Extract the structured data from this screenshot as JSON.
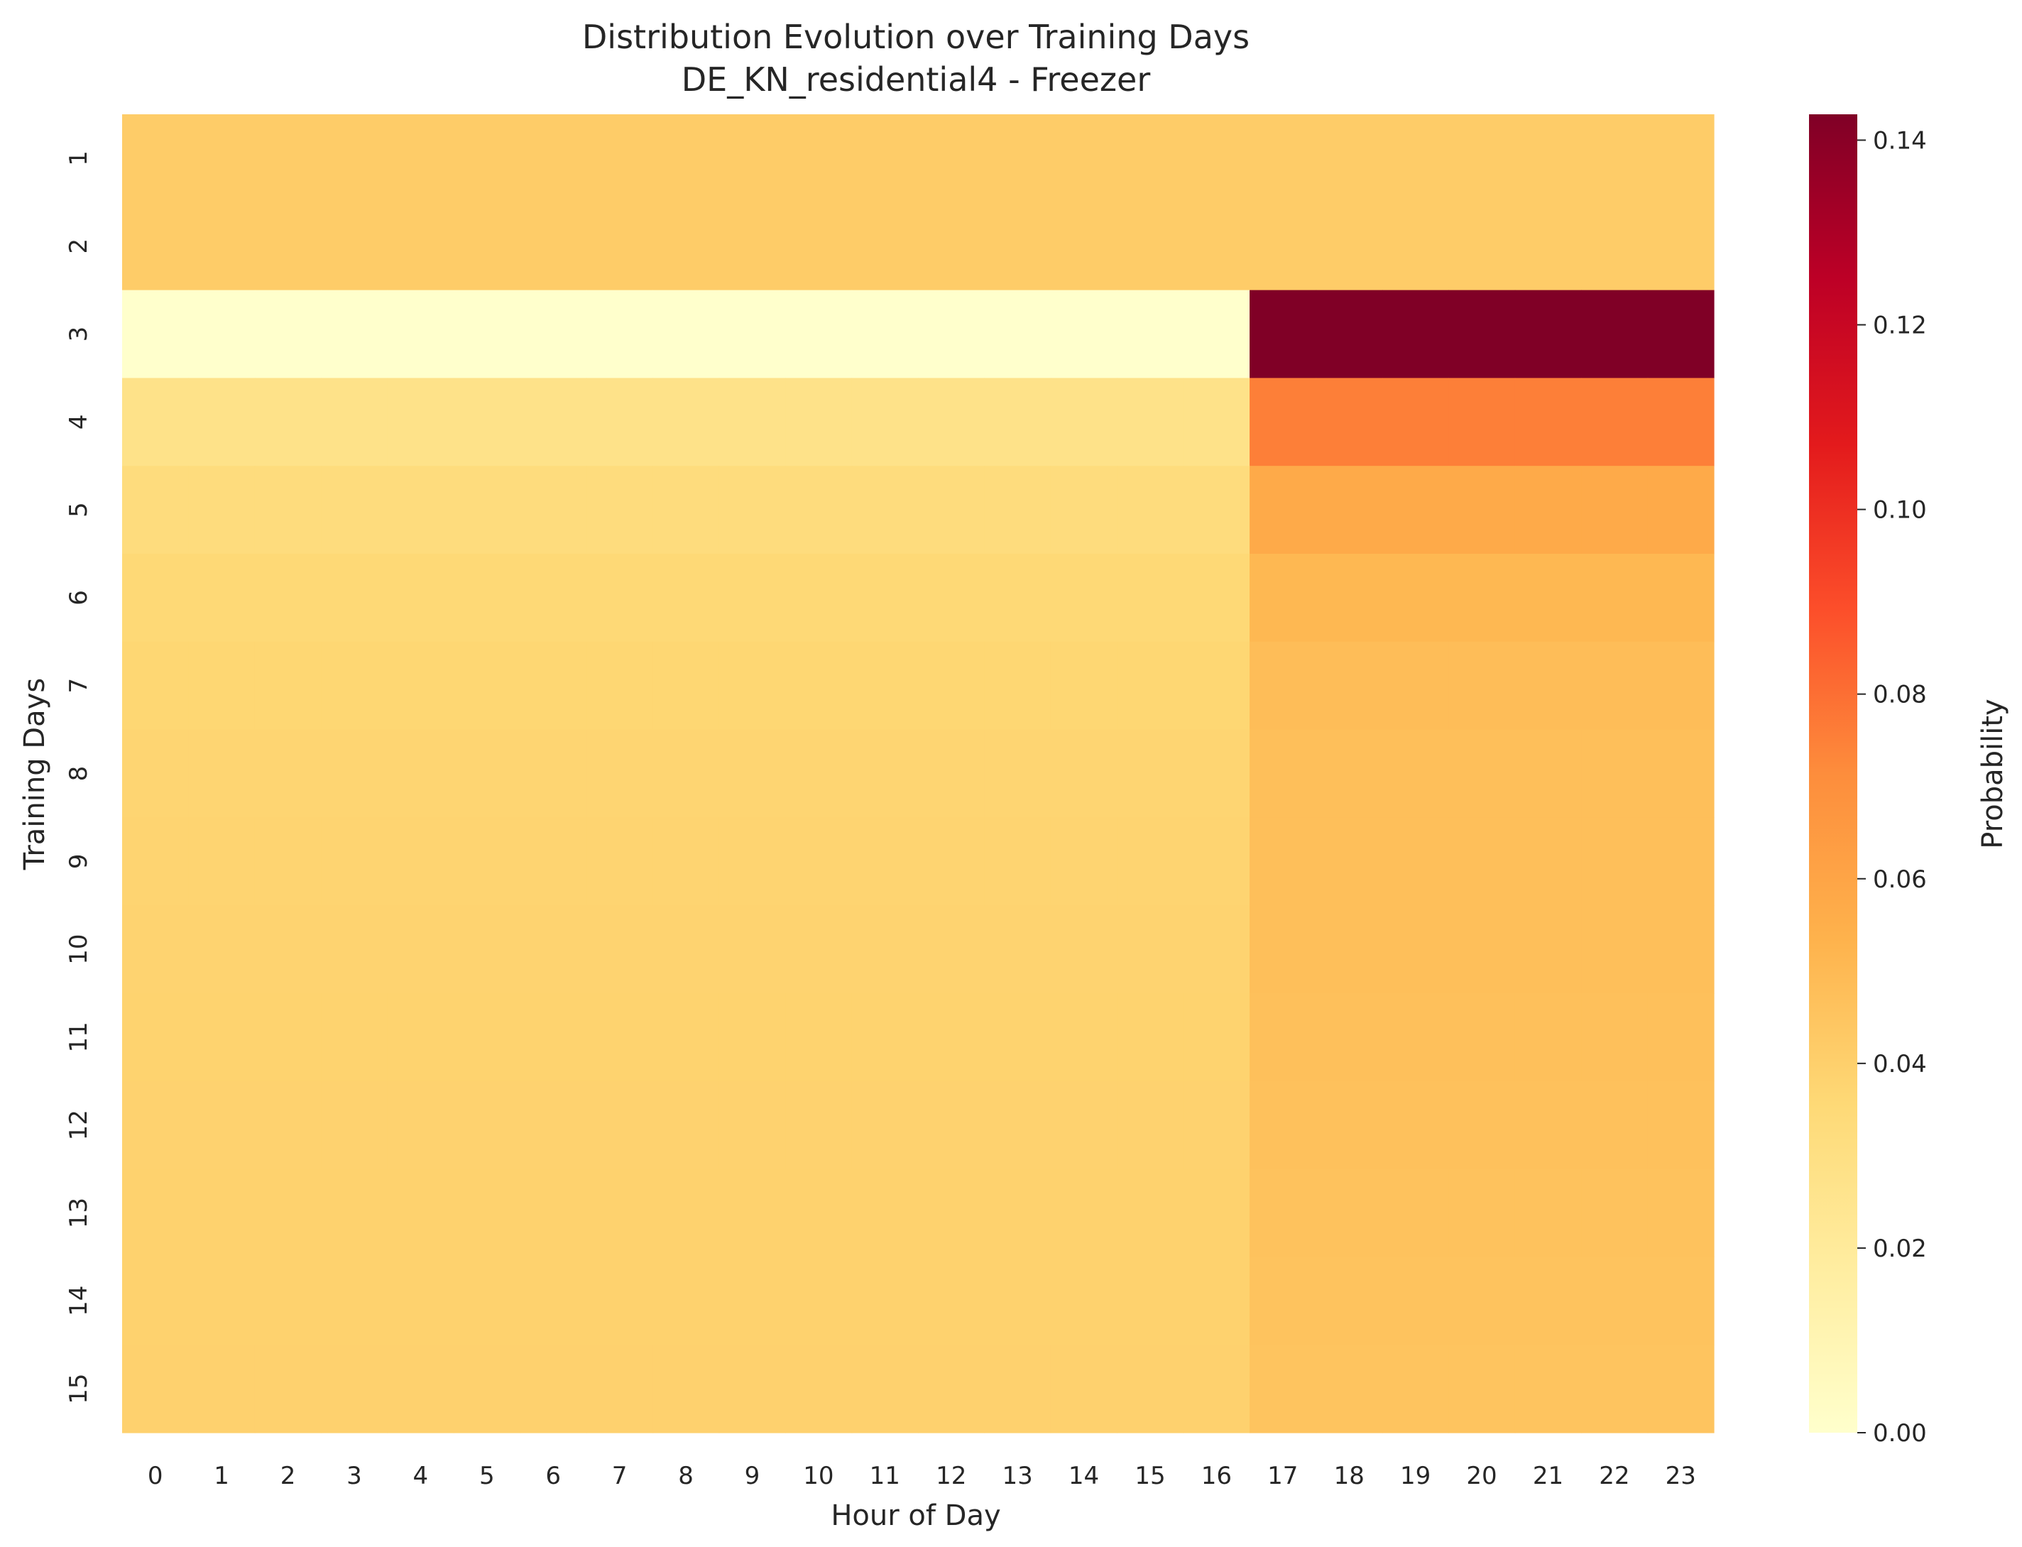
{
  "chart_data": {
    "type": "heatmap",
    "title": "Distribution Evolution over Training Days",
    "subtitle": "DE_KN_residential4 - Freezer",
    "xlabel": "Hour of Day",
    "ylabel": "Training Days",
    "x": [
      "0",
      "1",
      "2",
      "3",
      "4",
      "5",
      "6",
      "7",
      "8",
      "9",
      "10",
      "11",
      "12",
      "13",
      "14",
      "15",
      "16",
      "17",
      "18",
      "19",
      "20",
      "21",
      "22",
      "23"
    ],
    "y": [
      "1",
      "2",
      "3",
      "4",
      "5",
      "6",
      "7",
      "8",
      "9",
      "10",
      "11",
      "12",
      "13",
      "14",
      "15"
    ],
    "colormap": "YlOrRd",
    "colorbar": {
      "label": "Probability",
      "vmin": 0.0,
      "vmax": 0.1428,
      "ticks": [
        0.0,
        0.02,
        0.04,
        0.06,
        0.08,
        0.1,
        0.12,
        0.14
      ],
      "tick_labels": [
        "0.00",
        "0.02",
        "0.04",
        "0.06",
        "0.08",
        "0.10",
        "0.12",
        "0.14"
      ]
    },
    "rows": [
      {
        "day": "1",
        "hours_0_16": 0.0417,
        "hours_17_23": 0.0417
      },
      {
        "day": "2",
        "hours_0_16": 0.0417,
        "hours_17_23": 0.0417
      },
      {
        "day": "3",
        "hours_0_16": 0.0,
        "hours_17_23": 0.1428
      },
      {
        "day": "4",
        "hours_0_16": 0.0278,
        "hours_17_23": 0.0754
      },
      {
        "day": "5",
        "hours_0_16": 0.0329,
        "hours_17_23": 0.0573
      },
      {
        "day": "6",
        "hours_0_16": 0.0355,
        "hours_17_23": 0.051
      },
      {
        "day": "7",
        "hours_0_16": 0.0368,
        "hours_17_23": 0.0484
      },
      {
        "day": "8",
        "hours_0_16": 0.0375,
        "hours_17_23": 0.0478
      },
      {
        "day": "9",
        "hours_0_16": 0.038,
        "hours_17_23": 0.0477
      },
      {
        "day": "10",
        "hours_0_16": 0.0383,
        "hours_17_23": 0.0474
      },
      {
        "day": "11",
        "hours_0_16": 0.0385,
        "hours_17_23": 0.047
      },
      {
        "day": "12",
        "hours_0_16": 0.0387,
        "hours_17_23": 0.0466
      },
      {
        "day": "13",
        "hours_0_16": 0.0389,
        "hours_17_23": 0.0462
      },
      {
        "day": "14",
        "hours_0_16": 0.0391,
        "hours_17_23": 0.0458
      },
      {
        "day": "15",
        "hours_0_16": 0.0392,
        "hours_17_23": 0.0455
      }
    ]
  }
}
